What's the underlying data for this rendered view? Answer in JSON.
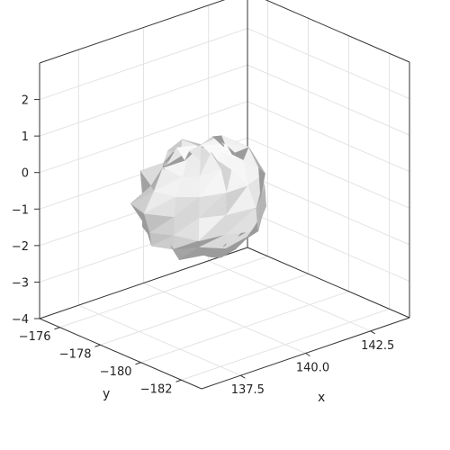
{
  "chart_data": {
    "type": "surface3d",
    "title": "",
    "xlabel": "x",
    "ylabel": "y",
    "zlabel": "",
    "grid": true,
    "xlim": [
      136.0,
      144.0
    ],
    "ylim": [
      -183.0,
      -175.0
    ],
    "zlim": [
      -4.0,
      3.0
    ],
    "xticks": [
      "137.5",
      "140.0",
      "142.5"
    ],
    "yticks": [
      "−176",
      "−178",
      "−180",
      "−182"
    ],
    "zticks": [
      "−4",
      "−3",
      "−2",
      "−1",
      "0",
      "1",
      "2"
    ],
    "surface": {
      "description_values": "closed triangulated mesh, grey shaded",
      "center": [
        139.5,
        -178.5,
        -0.9
      ],
      "extent_x": 4.2,
      "extent_y": 4.0,
      "extent_z": 3.3,
      "color_light": "#fafafa",
      "color_dark": "#8a8a8a"
    },
    "colors": {
      "axis": "#333333",
      "grid": "#e3e3e3",
      "background": "#ffffff"
    }
  }
}
